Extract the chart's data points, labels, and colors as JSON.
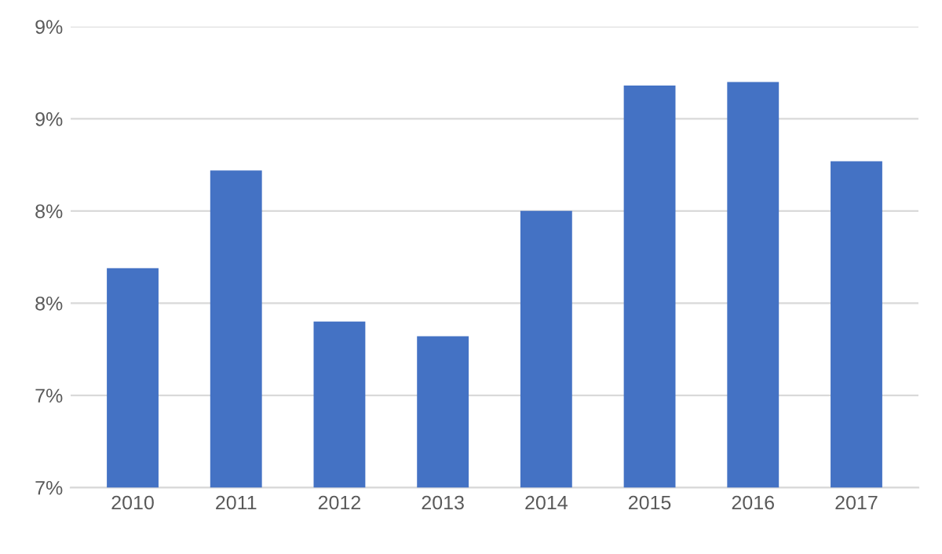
{
  "chart_data": {
    "type": "bar",
    "categories": [
      "2010",
      "2011",
      "2012",
      "2013",
      "2014",
      "2015",
      "2016",
      "2017"
    ],
    "values": [
      7.69,
      8.22,
      7.4,
      7.32,
      8.0,
      8.68,
      8.7,
      8.27
    ],
    "color": "#4472c4",
    "ylim": [
      6.5,
      9.0
    ],
    "yticks": [
      {
        "value": 6.5,
        "label": "7%"
      },
      {
        "value": 7.0,
        "label": "7%"
      },
      {
        "value": 7.5,
        "label": "8%"
      },
      {
        "value": 8.0,
        "label": "8%"
      },
      {
        "value": 8.5,
        "label": "9%"
      },
      {
        "value": 9.0,
        "label": "9%"
      }
    ],
    "grid": "y"
  }
}
